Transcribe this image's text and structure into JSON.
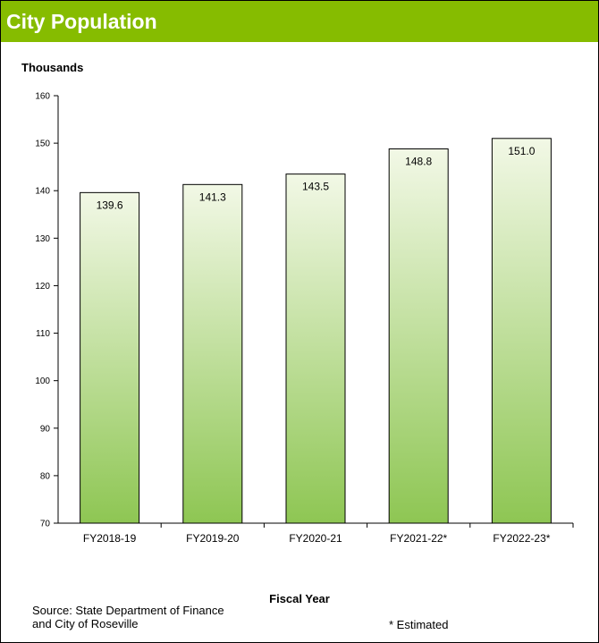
{
  "header": {
    "title": "City Population"
  },
  "chart_data": {
    "type": "bar",
    "title": "City Population",
    "ylabel": "Thousands",
    "xlabel": "Fiscal Year",
    "categories": [
      "FY2018-19",
      "FY2019-20",
      "FY2020-21",
      "FY2021-22*",
      "FY2022-23*"
    ],
    "values": [
      139.6,
      141.3,
      143.5,
      148.8,
      151.0
    ],
    "data_labels": [
      "139.6",
      "141.3",
      "143.5",
      "148.8",
      "151.0"
    ],
    "ylim": [
      70,
      160
    ],
    "yticks": [
      70,
      80,
      90,
      100,
      110,
      120,
      130,
      140,
      150,
      160
    ],
    "grid": false,
    "legend": "none",
    "bar_gradient": {
      "top": "#f2f8e6",
      "bottom": "#8ec653"
    },
    "bar_stroke": "#000000"
  },
  "footer": {
    "source_line1": "Source:  State Department of Finance",
    "source_line2": "and City of Roseville",
    "footnote": "* Estimated"
  },
  "colors": {
    "header_bg": "#86bc00",
    "header_text": "#ffffff"
  }
}
